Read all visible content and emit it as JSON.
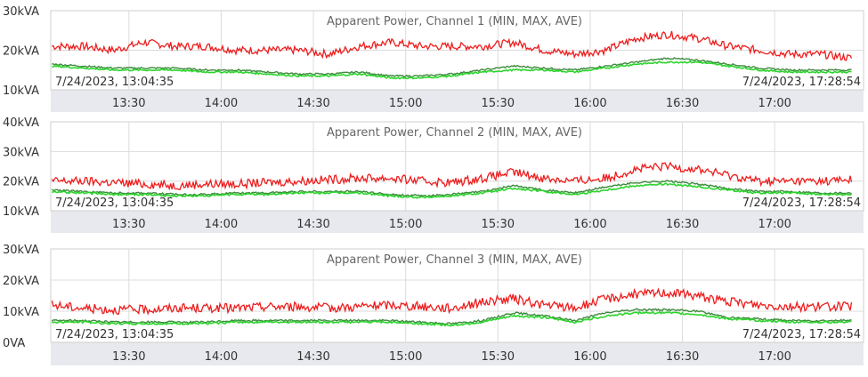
{
  "chart_data": [
    {
      "type": "line",
      "title": "Apparent Power, Channel 1 (MIN, MAX, AVE)",
      "start_label": "7/24/2023, 13:04:35",
      "end_label": "7/24/2023, 17:28:54",
      "ylim": [
        10,
        30
      ],
      "yticks": [
        "30kVA",
        "20kVA",
        "10kVA"
      ],
      "xticks": [
        "13:30",
        "14:00",
        "14:30",
        "15:00",
        "15:30",
        "16:00",
        "16:30",
        "17:00"
      ],
      "x": [
        "13:05",
        "13:15",
        "13:25",
        "13:35",
        "13:45",
        "13:55",
        "14:05",
        "14:15",
        "14:25",
        "14:35",
        "14:45",
        "14:55",
        "15:05",
        "15:15",
        "15:25",
        "15:35",
        "15:45",
        "15:55",
        "16:05",
        "16:15",
        "16:25",
        "16:35",
        "16:45",
        "16:55",
        "17:05",
        "17:15",
        "17:25"
      ],
      "series": [
        {
          "values": [
            21,
            21,
            20,
            22,
            21,
            21,
            20,
            20,
            20,
            19,
            21,
            22,
            21,
            21,
            21,
            22,
            20,
            19,
            20,
            23,
            24,
            23,
            21,
            20,
            19,
            19,
            18
          ]
        },
        {
          "values": [
            16.5,
            16,
            15.5,
            15.5,
            15.5,
            15,
            15,
            14.5,
            14,
            14,
            14.5,
            13.5,
            13.5,
            14,
            15,
            16,
            15.5,
            15,
            16,
            17,
            18,
            17.5,
            16.5,
            15.5,
            15,
            15,
            15
          ]
        },
        {
          "values": [
            16,
            15.5,
            15,
            15,
            15,
            14.5,
            14.5,
            14,
            13.5,
            13.5,
            14,
            13,
            13,
            13.5,
            14.5,
            15,
            15,
            14.5,
            15.5,
            16.5,
            17,
            17,
            16,
            15,
            14.5,
            14.5,
            14.5
          ]
        }
      ]
    },
    {
      "type": "line",
      "title": "Apparent Power, Channel 2 (MIN, MAX, AVE)",
      "start_label": "7/24/2023, 13:04:35",
      "end_label": "7/24/2023, 17:28:54",
      "ylim": [
        10,
        40
      ],
      "yticks": [
        "40kVA",
        "30kVA",
        "20kVA",
        "10kVA"
      ],
      "xticks": [
        "13:30",
        "14:00",
        "14:30",
        "15:00",
        "15:30",
        "16:00",
        "16:30",
        "17:00"
      ],
      "x": [
        "13:05",
        "13:15",
        "13:25",
        "13:35",
        "13:45",
        "13:55",
        "14:05",
        "14:15",
        "14:25",
        "14:35",
        "14:45",
        "14:55",
        "15:05",
        "15:15",
        "15:25",
        "15:35",
        "15:45",
        "15:55",
        "16:05",
        "16:15",
        "16:25",
        "16:35",
        "16:45",
        "16:55",
        "17:05",
        "17:15",
        "17:25"
      ],
      "series": [
        {
          "values": [
            20,
            20,
            19.5,
            19,
            18.5,
            19,
            19,
            19.5,
            20,
            20.5,
            21,
            21,
            20,
            19.5,
            21,
            23,
            21,
            20,
            21,
            24,
            25,
            24,
            22,
            20,
            20,
            20,
            20.5
          ]
        },
        {
          "values": [
            17,
            16.5,
            16,
            16,
            15.5,
            15.5,
            16,
            16,
            16.5,
            16.5,
            16.5,
            15.5,
            15,
            15.5,
            16.5,
            18.5,
            17,
            16,
            18,
            19.5,
            20,
            19,
            17.5,
            16.5,
            16.5,
            16,
            16
          ]
        },
        {
          "values": [
            16.5,
            16,
            15.5,
            15.5,
            15,
            15,
            15.5,
            15.5,
            16,
            16,
            16,
            15,
            14.5,
            15,
            16,
            17.5,
            16.5,
            15.5,
            17,
            18.5,
            19,
            18,
            17,
            16,
            16,
            15.5,
            15.5
          ]
        }
      ]
    },
    {
      "type": "line",
      "title": "Apparent Power, Channel 3 (MIN, MAX, AVE)",
      "start_label": "7/24/2023, 13:04:35",
      "end_label": "7/24/2023, 17:28:54",
      "ylim": [
        0,
        30
      ],
      "yticks": [
        "30kVA",
        "20kVA",
        "10kVA",
        "0VA"
      ],
      "xticks": [
        "13:30",
        "14:00",
        "14:30",
        "15:00",
        "15:30",
        "16:00",
        "16:30",
        "17:00"
      ],
      "x": [
        "13:05",
        "13:15",
        "13:25",
        "13:35",
        "13:45",
        "13:55",
        "14:05",
        "14:15",
        "14:25",
        "14:35",
        "14:45",
        "14:55",
        "15:05",
        "15:15",
        "15:25",
        "15:35",
        "15:45",
        "15:55",
        "16:05",
        "16:15",
        "16:25",
        "16:35",
        "16:45",
        "16:55",
        "17:05",
        "17:15",
        "17:25"
      ],
      "series": [
        {
          "values": [
            12,
            11,
            10.5,
            10.5,
            11,
            11,
            11,
            11.5,
            11.5,
            11,
            11.5,
            12,
            11.5,
            11,
            13,
            14,
            12,
            11,
            14,
            15.5,
            16,
            15,
            13,
            12,
            11.5,
            11.5,
            11.5
          ]
        },
        {
          "values": [
            7,
            7,
            6.5,
            6.5,
            6.5,
            6.5,
            7,
            7,
            7,
            7,
            7,
            7,
            6.5,
            6,
            7,
            9.5,
            8.5,
            7,
            9.5,
            10.5,
            10.5,
            10,
            8,
            7.5,
            7,
            7,
            7
          ]
        },
        {
          "values": [
            6.5,
            6.5,
            6,
            6,
            6,
            6,
            6.5,
            6.5,
            6.5,
            6.5,
            6.5,
            6.5,
            6,
            5.5,
            6.5,
            8.5,
            8,
            6.5,
            8.5,
            9.5,
            9.5,
            9,
            7.5,
            7,
            6.5,
            6.5,
            6.5
          ]
        }
      ]
    }
  ],
  "colors": {
    "max": "#ee1c1c",
    "ave": "#2bd52b",
    "min": "#3d8a3d",
    "plot_bg": "#ffffff",
    "axis_strip_bg": "#e8e9ee",
    "grid": "#dcdcdc",
    "text": "#333333",
    "title": "#666666"
  }
}
